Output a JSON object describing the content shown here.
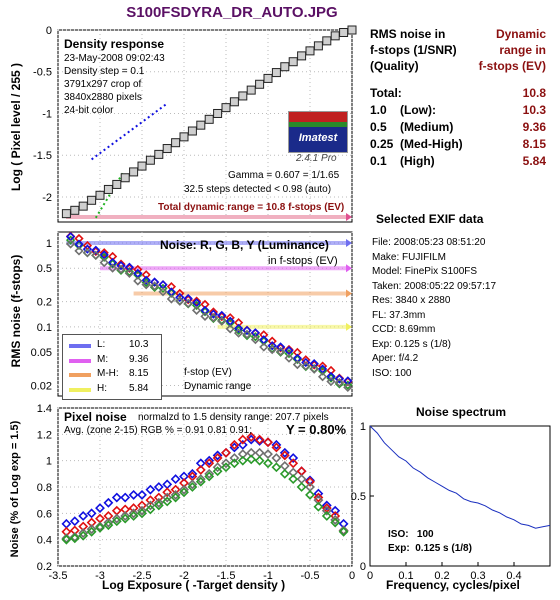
{
  "page_title": "S100FSDYRA_DR_AUTO.JPG",
  "colors": {
    "title": "#5a1064",
    "dark_red": "#8b1010",
    "low_series": "#6e6ef0",
    "medium_series": "#e060f0",
    "medhigh_series": "#f0a060",
    "high_series": "#f0f060",
    "red": "#e01010",
    "green": "#2a9a2a",
    "blue": "#1010e0",
    "gray": "#707070"
  },
  "chart_data": [
    {
      "id": "density",
      "type": "line",
      "title": "Density response",
      "ylabel": "Log ( Pixel level / 255 )",
      "xlim": [
        -3.5,
        0
      ],
      "ylim": [
        -2.3,
        0
      ],
      "yticks": [
        "0",
        "-0.5",
        "-1",
        "-1.5",
        "-2"
      ],
      "info": [
        "23-May-2008 09:02:43",
        "Density step = 0.1",
        "3791x297 crop of",
        "3840x2880 pixels",
        "24-bit color"
      ],
      "annotations": [
        "Gamma = 0.607 = 1/1.65",
        "32.5 steps detected < 0.98 (auto)"
      ],
      "total_dr": "Total dynamic range = 10.8 f-stops (EV)",
      "logo": "Imatest",
      "version": "2.4.1",
      "edition": "Pro",
      "steps_y": [
        -2.2,
        -2.16,
        -2.11,
        -2.04,
        -1.98,
        -1.91,
        -1.85,
        -1.77,
        -1.7,
        -1.63,
        -1.56,
        -1.49,
        -1.42,
        -1.35,
        -1.28,
        -1.21,
        -1.14,
        -1.07,
        -1.0,
        -0.93,
        -0.86,
        -0.79,
        -0.72,
        -0.65,
        -0.58,
        -0.51,
        -0.44,
        -0.38,
        -0.31,
        -0.25,
        -0.19,
        -0.13,
        -0.07,
        -0.03,
        0.0
      ]
    },
    {
      "id": "rms_noise",
      "type": "scatter",
      "title": "Noise: R, G, B, Y (Luminance)",
      "subtitle": "in f-stops (EV)",
      "ylabel": "RMS noise (f-stops)",
      "log_y": true,
      "xlim": [
        -3.5,
        0
      ],
      "yticks": [
        1,
        0.5,
        0.2,
        0.1,
        0.05,
        0.02
      ],
      "ytick_labels": [
        "1",
        "0.5",
        "0.2",
        "0.1",
        "0.05",
        "0.02"
      ],
      "legend": [
        {
          "key": "L:",
          "value": "10.3"
        },
        {
          "key": "M:",
          "value": "9.36"
        },
        {
          "key": "M-H:",
          "value": "8.15"
        },
        {
          "key": "H:",
          "value": "5.84"
        }
      ],
      "levels": [
        1.0,
        0.5,
        0.25,
        0.1
      ],
      "note_lines": [
        "f-stop (EV)",
        "Dynamic range"
      ]
    },
    {
      "id": "pixel_noise",
      "type": "scatter",
      "title": "Pixel noise",
      "header_note": "normalzd to 1.5 density range: 207.7 pixels",
      "avg_line": "Avg. (zone 2-15) RGB % = 0.91  0.81  0.91;",
      "y_value": "Y = 0.80%",
      "xlabel": "Log Exposure  ( -Target density )",
      "ylabel": "Noise (% of Log exp = 1.5)",
      "xlim": [
        -3.5,
        0
      ],
      "ylim": [
        0.2,
        1.4
      ],
      "xticks": [
        -3.5,
        -3,
        -2.5,
        -2,
        -1.5,
        -1,
        -0.5,
        0
      ],
      "xtick_labels": [
        "-3.5",
        "-3",
        "-2.5",
        "-2",
        "-1.5",
        "-1",
        "-0.5",
        "0"
      ],
      "yticks": [
        0.2,
        0.4,
        0.6,
        0.8,
        1,
        1.2,
        1.4
      ],
      "ytick_labels": [
        "0.2",
        "0.4",
        "0.6",
        "0.8",
        "1",
        "1.2",
        "1.4"
      ],
      "x": [
        -3.4,
        -3.3,
        -3.2,
        -3.1,
        -3.0,
        -2.9,
        -2.8,
        -2.7,
        -2.6,
        -2.5,
        -2.4,
        -2.3,
        -2.2,
        -2.1,
        -2.0,
        -1.9,
        -1.8,
        -1.7,
        -1.6,
        -1.5,
        -1.4,
        -1.3,
        -1.2,
        -1.1,
        -1.0,
        -0.9,
        -0.8,
        -0.7,
        -0.6,
        -0.5,
        -0.4,
        -0.3,
        -0.2,
        -0.1
      ],
      "series": [
        {
          "color": "blue",
          "values": [
            0.52,
            0.54,
            0.58,
            0.6,
            0.64,
            0.68,
            0.72,
            0.72,
            0.74,
            0.74,
            0.78,
            0.8,
            0.82,
            0.86,
            0.88,
            0.9,
            0.98,
            1.0,
            1.04,
            1.06,
            1.1,
            1.12,
            1.16,
            1.15,
            1.14,
            1.12,
            1.06,
            1.02,
            0.92,
            0.85,
            0.75,
            0.66,
            0.62,
            0.52
          ]
        },
        {
          "color": "red",
          "values": [
            0.46,
            0.47,
            0.5,
            0.53,
            0.56,
            0.58,
            0.62,
            0.63,
            0.64,
            0.66,
            0.7,
            0.72,
            0.76,
            0.78,
            0.83,
            0.88,
            0.93,
            0.98,
            1.02,
            1.06,
            1.12,
            1.16,
            1.18,
            1.16,
            1.14,
            1.1,
            1.04,
            0.98,
            0.92,
            0.84,
            0.72,
            0.64,
            0.58,
            0.47
          ]
        },
        {
          "color": "gray",
          "values": [
            0.41,
            0.42,
            0.45,
            0.48,
            0.5,
            0.53,
            0.56,
            0.58,
            0.6,
            0.62,
            0.66,
            0.68,
            0.72,
            0.74,
            0.78,
            0.82,
            0.86,
            0.9,
            0.95,
            0.98,
            1.02,
            1.05,
            1.06,
            1.06,
            1.05,
            1.02,
            0.96,
            0.91,
            0.86,
            0.8,
            0.7,
            0.62,
            0.55,
            0.47
          ]
        },
        {
          "color": "green",
          "values": [
            0.4,
            0.41,
            0.43,
            0.46,
            0.49,
            0.51,
            0.54,
            0.56,
            0.58,
            0.6,
            0.63,
            0.66,
            0.69,
            0.72,
            0.76,
            0.8,
            0.84,
            0.88,
            0.92,
            0.95,
            0.98,
            1.0,
            1.01,
            1.0,
            0.98,
            0.95,
            0.9,
            0.86,
            0.8,
            0.74,
            0.65,
            0.58,
            0.53,
            0.46
          ]
        }
      ]
    },
    {
      "id": "noise_spectrum",
      "type": "line",
      "title": "Noise spectrum",
      "xlabel": "Frequency, cycles/pixel",
      "xlim": [
        0,
        0.5
      ],
      "ylim": [
        0,
        1
      ],
      "xticks": [
        0,
        0.1,
        0.2,
        0.3,
        0.4
      ],
      "xtick_labels": [
        "0",
        "0.1",
        "0.2",
        "0.3",
        "0.4"
      ],
      "yticks": [
        0,
        0.5,
        1
      ],
      "ytick_labels": [
        "0",
        "0.5",
        "1"
      ],
      "iso_label": "ISO:",
      "iso_value": "100",
      "exp_label": "Exp:",
      "exp_value": "0.125 s  (1/8)",
      "x": [
        0.0,
        0.02,
        0.04,
        0.06,
        0.08,
        0.1,
        0.12,
        0.14,
        0.16,
        0.18,
        0.2,
        0.22,
        0.24,
        0.26,
        0.28,
        0.3,
        0.32,
        0.34,
        0.36,
        0.38,
        0.4,
        0.42,
        0.44,
        0.46,
        0.48,
        0.5
      ],
      "values": [
        1.0,
        0.95,
        0.88,
        0.83,
        0.78,
        0.75,
        0.7,
        0.67,
        0.63,
        0.6,
        0.57,
        0.54,
        0.52,
        0.48,
        0.46,
        0.45,
        0.43,
        0.4,
        0.38,
        0.35,
        0.33,
        0.3,
        0.29,
        0.27,
        0.28,
        0.29
      ]
    }
  ],
  "summary": {
    "col1_header": "RMS noise in\nf-stops (1/SNR)\n(Quality)",
    "col2_header": "Dynamic\nrange in\nf-stops (EV)",
    "rows": [
      {
        "label": "Total:",
        "sub": "",
        "value": "10.8"
      },
      {
        "label": "1.0",
        "sub": "(Low):",
        "value": "10.3"
      },
      {
        "label": "0.5",
        "sub": "(Medium)",
        "value": "9.36"
      },
      {
        "label": "0.25",
        "sub": "(Med-High)",
        "value": "8.15"
      },
      {
        "label": "0.1",
        "sub": "(High)",
        "value": "5.84"
      }
    ]
  },
  "exif": {
    "title": "Selected EXIF data",
    "rows": [
      {
        "k": "File:",
        "v": "2008:05:23 08:51:20"
      },
      {
        "k": "Make:",
        "v": "FUJIFILM"
      },
      {
        "k": "Model:",
        "v": "FinePix S100FS"
      },
      {
        "k": "Taken:",
        "v": "2008:05:22 09:57:17"
      },
      {
        "k": "Res:",
        "v": "3840 x 2880"
      },
      {
        "k": "FL:",
        "v": "37.3mm"
      },
      {
        "k": "CCD:",
        "v": "8.69mm"
      },
      {
        "k": "Exp:",
        "v": "0.125 s  (1/8)"
      },
      {
        "k": "Aper:",
        "v": "f/4.2"
      },
      {
        "k": "ISO:",
        "v": "100"
      }
    ]
  }
}
